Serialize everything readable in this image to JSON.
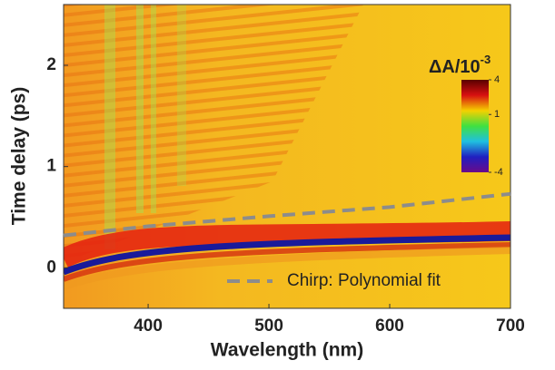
{
  "chart_data": {
    "type": "line",
    "xlabel": "Wavelength (nm)",
    "ylabel": "Time delay (ps)",
    "xlim": [
      330,
      700
    ],
    "ylim": [
      -0.4,
      2.6
    ],
    "xticks": [
      400,
      500,
      600,
      700
    ],
    "yticks": [
      0,
      1,
      2
    ],
    "series": [
      {
        "name": "Chirp: Polynomial fit",
        "color": "#8c8c8c",
        "x": [
          330,
          400,
          500,
          600,
          700
        ],
        "values": [
          0.32,
          0.41,
          0.51,
          0.6,
          0.73
        ]
      }
    ],
    "legend": "lower right",
    "colorbar": {
      "title": "ΔA/10",
      "title_sup": "-3",
      "clim": [
        -4,
        4
      ],
      "ticks": [
        4,
        1,
        -4
      ],
      "colors": [
        "#5a0000",
        "#d81010",
        "#f5d000",
        "#40e040",
        "#20c0e0",
        "#2020c0",
        "#6a0a8a"
      ]
    }
  }
}
